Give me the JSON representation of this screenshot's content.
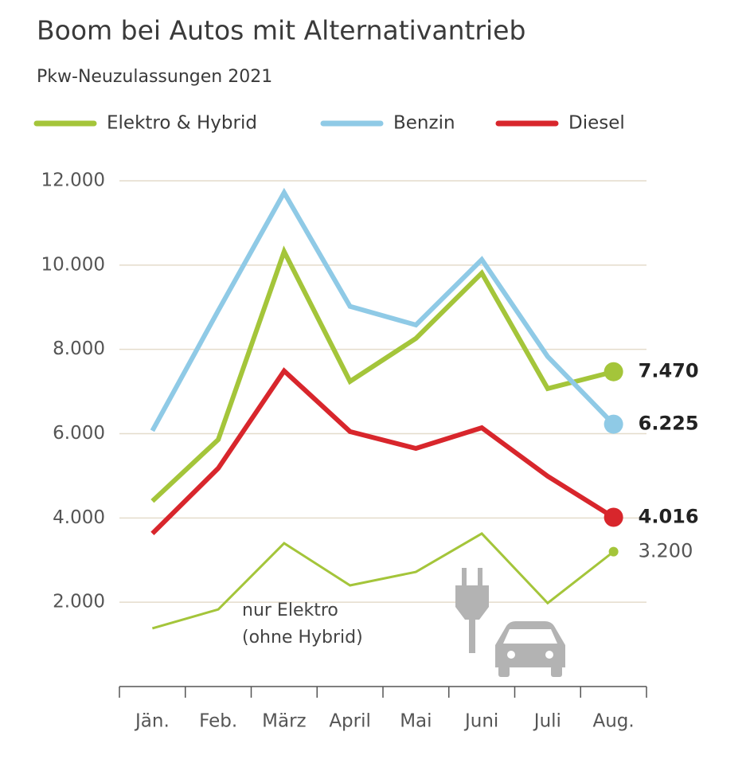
{
  "chart_data": {
    "type": "line",
    "title": "Boom bei Autos mit Alternativantrieb",
    "subtitle": "Pkw-Neuzulassungen 2021",
    "categories": [
      "Jän.",
      "Feb.",
      "März",
      "April",
      "Mai",
      "Juni",
      "Juli",
      "Aug."
    ],
    "series": [
      {
        "name": "Elektro & Hybrid",
        "color": "#a4c53a",
        "values": [
          4400,
          5860,
          10320,
          7240,
          8260,
          9810,
          7070,
          7470
        ],
        "value_labels": [
          null,
          null,
          null,
          null,
          null,
          null,
          null,
          "7.470"
        ]
      },
      {
        "name": "Benzin",
        "color": "#8fcae6",
        "values": [
          6070,
          8920,
          11720,
          9020,
          8580,
          10130,
          7830,
          6225
        ],
        "value_labels": [
          null,
          null,
          null,
          null,
          null,
          null,
          null,
          "6.225"
        ]
      },
      {
        "name": "Diesel",
        "color": "#d8262c",
        "values": [
          3630,
          5180,
          7490,
          6050,
          5650,
          6140,
          4990,
          4016
        ],
        "value_labels": [
          null,
          null,
          null,
          null,
          null,
          null,
          null,
          "4.016"
        ]
      },
      {
        "name_lines": [
          "nur Elektro",
          "(ohne Hybrid)"
        ],
        "in_legend": false,
        "thin": true,
        "color": "#a4c53a",
        "values": [
          1380,
          1830,
          3400,
          2400,
          2720,
          3630,
          1980,
          3200
        ],
        "value_labels": [
          null,
          null,
          null,
          null,
          null,
          null,
          null,
          "3.200"
        ]
      }
    ],
    "ylim": [
      0,
      12000
    ],
    "yticks": [
      {
        "value": 2000,
        "label": "2.000"
      },
      {
        "value": 4000,
        "label": "4.000"
      },
      {
        "value": 6000,
        "label": "6.000"
      },
      {
        "value": 8000,
        "label": "8.000"
      },
      {
        "value": 10000,
        "label": "10.000"
      },
      {
        "value": 12000,
        "label": "12.000"
      }
    ],
    "grid": true
  }
}
